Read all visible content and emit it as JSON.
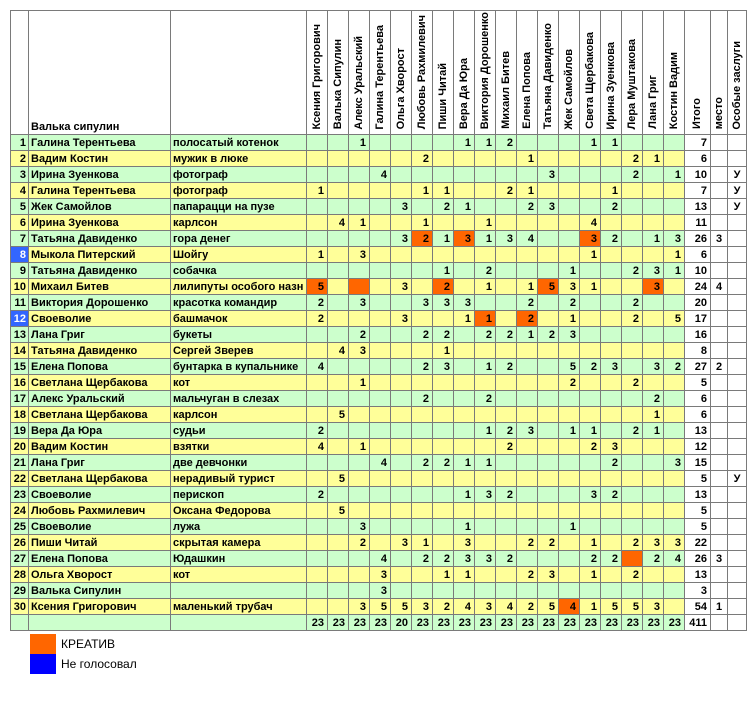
{
  "sheet": {
    "corner_label": "Валька сипулин",
    "columns": {
      "voters": [
        "Ксения Григорович",
        "Валька Сипулин",
        "Алекс Уральский",
        "Галина Терентьева",
        "Ольга Хворост",
        "Любовь Рахмилевич",
        "Пиши Читай",
        "Вера Да Юра",
        "Виктория Дорошенко",
        "Михаил Битев",
        "Елена Попова",
        "Татьяна Давиденко",
        "Жек Самойлов",
        "Света Щербакова",
        "Ирина Зуенкова",
        "Лера Муштакова",
        "Лана Григ",
        "Костин Вадим"
      ],
      "total": "Итого",
      "place": "место",
      "merit": "Особые заслуги"
    },
    "rows": [
      {
        "num": 1,
        "name": "Галина Терентьева",
        "entry": "полосатый котенок",
        "votes": [
          null,
          null,
          1,
          null,
          null,
          null,
          null,
          1,
          1,
          2,
          null,
          null,
          null,
          1,
          1,
          null,
          null,
          null
        ],
        "creative": [],
        "no_vote": false,
        "total": 7,
        "place": "",
        "merit": ""
      },
      {
        "num": 2,
        "name": "Вадим Костин",
        "entry": "мужик в люке",
        "votes": [
          null,
          null,
          null,
          null,
          null,
          2,
          null,
          null,
          null,
          null,
          1,
          null,
          null,
          null,
          null,
          2,
          1,
          null
        ],
        "creative": [],
        "no_vote": false,
        "total": 6,
        "place": "",
        "merit": ""
      },
      {
        "num": 3,
        "name": "Ирина Зуенкова",
        "entry": "фотограф",
        "votes": [
          null,
          null,
          null,
          4,
          null,
          null,
          null,
          null,
          null,
          null,
          null,
          3,
          null,
          null,
          null,
          2,
          null,
          1
        ],
        "creative": [],
        "no_vote": false,
        "total": 10,
        "place": "",
        "merit": "У"
      },
      {
        "num": 4,
        "name": "Галина Терентьева",
        "entry": "фотограф",
        "votes": [
          1,
          null,
          null,
          null,
          null,
          1,
          1,
          null,
          null,
          2,
          1,
          null,
          null,
          null,
          1,
          null,
          null,
          null
        ],
        "creative": [],
        "no_vote": false,
        "total": 7,
        "place": "",
        "merit": "У"
      },
      {
        "num": 5,
        "name": "Жек Самойлов",
        "entry": "папарацци на пузе",
        "votes": [
          null,
          null,
          null,
          null,
          3,
          null,
          2,
          1,
          null,
          null,
          2,
          3,
          null,
          null,
          2,
          null,
          null,
          null
        ],
        "creative": [],
        "no_vote": false,
        "total": 13,
        "place": "",
        "merit": "У"
      },
      {
        "num": 6,
        "name": "Ирина Зуенкова",
        "entry": "карлсон",
        "votes": [
          null,
          4,
          1,
          null,
          null,
          1,
          null,
          null,
          1,
          null,
          null,
          null,
          null,
          4,
          null,
          null,
          null,
          null
        ],
        "creative": [],
        "no_vote": false,
        "total": 11,
        "place": "",
        "merit": ""
      },
      {
        "num": 7,
        "name": "Татьяна Давиденко",
        "entry": "гора денег",
        "votes": [
          null,
          null,
          null,
          null,
          3,
          2,
          1,
          3,
          1,
          3,
          4,
          null,
          null,
          3,
          2,
          null,
          1,
          3
        ],
        "creative": [
          5,
          7,
          13
        ],
        "no_vote": false,
        "total": 26,
        "place": "3",
        "merit": ""
      },
      {
        "num": 8,
        "name": "Мыкола Питерский",
        "entry": "Шойгу",
        "votes": [
          1,
          null,
          3,
          null,
          null,
          null,
          null,
          null,
          null,
          null,
          null,
          null,
          null,
          1,
          null,
          null,
          null,
          1
        ],
        "creative": [],
        "no_vote": true,
        "total": 6,
        "place": "",
        "merit": ""
      },
      {
        "num": 9,
        "name": "Татьяна Давиденко",
        "entry": "собачка",
        "votes": [
          null,
          null,
          null,
          null,
          null,
          null,
          1,
          null,
          2,
          null,
          null,
          null,
          1,
          null,
          null,
          2,
          3,
          1
        ],
        "creative": [],
        "no_vote": false,
        "total": 10,
        "place": "",
        "merit": ""
      },
      {
        "num": 10,
        "name": "Михаил Битев",
        "entry": "лилипуты особого назн",
        "votes": [
          5,
          null,
          null,
          null,
          3,
          null,
          2,
          null,
          1,
          null,
          1,
          5,
          3,
          1,
          null,
          null,
          3,
          null
        ],
        "creative": [
          0,
          2,
          6,
          11,
          16
        ],
        "no_vote": false,
        "total": 24,
        "place": "4",
        "merit": ""
      },
      {
        "num": 11,
        "name": "Виктория Дорошенко",
        "entry": "красотка командир",
        "votes": [
          2,
          null,
          3,
          null,
          null,
          3,
          3,
          3,
          null,
          null,
          2,
          null,
          2,
          null,
          null,
          2,
          null,
          null
        ],
        "creative": [],
        "no_vote": false,
        "total": 20,
        "place": "",
        "merit": ""
      },
      {
        "num": 12,
        "name": "Своеволие",
        "entry": "башмачок",
        "votes": [
          2,
          null,
          null,
          null,
          3,
          null,
          null,
          1,
          1,
          null,
          2,
          null,
          1,
          null,
          null,
          2,
          null,
          5
        ],
        "creative": [
          8,
          10
        ],
        "no_vote": true,
        "total": 17,
        "place": "",
        "merit": ""
      },
      {
        "num": 13,
        "name": "Лана Григ",
        "entry": "букеты",
        "votes": [
          null,
          null,
          2,
          null,
          null,
          2,
          2,
          null,
          2,
          2,
          1,
          2,
          3,
          null,
          null,
          null,
          null,
          null
        ],
        "creative": [],
        "no_vote": false,
        "total": 16,
        "place": "",
        "merit": ""
      },
      {
        "num": 14,
        "name": "Татьяна Давиденко",
        "entry": "Сергей Зверев",
        "votes": [
          null,
          4,
          3,
          null,
          null,
          null,
          1,
          null,
          null,
          null,
          null,
          null,
          null,
          null,
          null,
          null,
          null,
          null
        ],
        "creative": [],
        "no_vote": false,
        "total": 8,
        "place": "",
        "merit": ""
      },
      {
        "num": 15,
        "name": "Елена Попова",
        "entry": "бунтарка в купальнике",
        "votes": [
          4,
          null,
          null,
          null,
          null,
          2,
          3,
          null,
          1,
          2,
          null,
          null,
          5,
          2,
          3,
          null,
          3,
          2
        ],
        "creative": [],
        "no_vote": false,
        "total": 27,
        "place": "2",
        "merit": ""
      },
      {
        "num": 16,
        "name": "Светлана Щербакова",
        "entry": "кот",
        "votes": [
          null,
          null,
          1,
          null,
          null,
          null,
          null,
          null,
          null,
          null,
          null,
          null,
          2,
          null,
          null,
          2,
          null,
          null
        ],
        "creative": [],
        "no_vote": false,
        "total": 5,
        "place": "",
        "merit": ""
      },
      {
        "num": 17,
        "name": "Алекс Уральский",
        "entry": "мальчуган в слезах",
        "votes": [
          null,
          null,
          null,
          null,
          null,
          2,
          null,
          null,
          2,
          null,
          null,
          null,
          null,
          null,
          null,
          null,
          2,
          null
        ],
        "creative": [],
        "no_vote": false,
        "total": 6,
        "place": "",
        "merit": ""
      },
      {
        "num": 18,
        "name": "Светлана Щербакова",
        "entry": "карлсон",
        "votes": [
          null,
          5,
          null,
          null,
          null,
          null,
          null,
          null,
          null,
          null,
          null,
          null,
          null,
          null,
          null,
          null,
          1,
          null
        ],
        "creative": [],
        "no_vote": false,
        "total": 6,
        "place": "",
        "merit": ""
      },
      {
        "num": 19,
        "name": "Вера Да Юра",
        "entry": "судьи",
        "votes": [
          2,
          null,
          null,
          null,
          null,
          null,
          null,
          null,
          1,
          2,
          3,
          null,
          1,
          1,
          null,
          2,
          1,
          null
        ],
        "creative": [],
        "no_vote": false,
        "total": 13,
        "place": "",
        "merit": ""
      },
      {
        "num": 20,
        "name": "Вадим Костин",
        "entry": "взятки",
        "votes": [
          4,
          null,
          1,
          null,
          null,
          null,
          null,
          null,
          null,
          2,
          null,
          null,
          null,
          2,
          3,
          null,
          null,
          null
        ],
        "creative": [],
        "no_vote": false,
        "total": 12,
        "place": "",
        "merit": ""
      },
      {
        "num": 21,
        "name": "Лана Григ",
        "entry": "две девчонки",
        "votes": [
          null,
          null,
          null,
          4,
          null,
          2,
          2,
          1,
          1,
          null,
          null,
          null,
          null,
          null,
          2,
          null,
          null,
          3
        ],
        "creative": [],
        "no_vote": false,
        "total": 15,
        "place": "",
        "merit": ""
      },
      {
        "num": 22,
        "name": "Светлана Щербакова",
        "entry": "нерадивый турист",
        "votes": [
          null,
          5,
          null,
          null,
          null,
          null,
          null,
          null,
          null,
          null,
          null,
          null,
          null,
          null,
          null,
          null,
          null,
          null
        ],
        "creative": [],
        "no_vote": false,
        "total": 5,
        "place": "",
        "merit": "У"
      },
      {
        "num": 23,
        "name": "Своеволие",
        "entry": "перископ",
        "votes": [
          2,
          null,
          null,
          null,
          null,
          null,
          null,
          1,
          3,
          2,
          null,
          null,
          null,
          3,
          2,
          null,
          null,
          null
        ],
        "creative": [],
        "no_vote": false,
        "total": 13,
        "place": "",
        "merit": ""
      },
      {
        "num": 24,
        "name": "Любовь Рахмилевич",
        "entry": "Оксана Федорова",
        "votes": [
          null,
          5,
          null,
          null,
          null,
          null,
          null,
          null,
          null,
          null,
          null,
          null,
          null,
          null,
          null,
          null,
          null,
          null
        ],
        "creative": [],
        "no_vote": false,
        "total": 5,
        "place": "",
        "merit": ""
      },
      {
        "num": 25,
        "name": "Своеволие",
        "entry": "лужа",
        "votes": [
          null,
          null,
          3,
          null,
          null,
          null,
          null,
          1,
          null,
          null,
          null,
          null,
          1,
          null,
          null,
          null,
          null,
          null
        ],
        "creative": [],
        "no_vote": false,
        "total": 5,
        "place": "",
        "merit": ""
      },
      {
        "num": 26,
        "name": "Пиши Читай",
        "entry": "скрытая камера",
        "votes": [
          null,
          null,
          2,
          null,
          3,
          1,
          null,
          3,
          null,
          null,
          2,
          2,
          null,
          1,
          null,
          2,
          3,
          3
        ],
        "creative": [],
        "no_vote": false,
        "total": 22,
        "place": "",
        "merit": ""
      },
      {
        "num": 27,
        "name": "Елена Попова",
        "entry": "Юдашкин",
        "votes": [
          null,
          null,
          null,
          4,
          null,
          2,
          2,
          3,
          3,
          2,
          null,
          null,
          null,
          2,
          2,
          null,
          2,
          4
        ],
        "creative": [
          15
        ],
        "no_vote": false,
        "total": 26,
        "place": "3",
        "merit": ""
      },
      {
        "num": 28,
        "name": "Ольга Хворост",
        "entry": "кот",
        "votes": [
          null,
          null,
          null,
          3,
          null,
          null,
          1,
          1,
          null,
          null,
          2,
          3,
          null,
          1,
          null,
          2,
          null,
          null
        ],
        "creative": [],
        "no_vote": false,
        "total": 13,
        "place": "",
        "merit": ""
      },
      {
        "num": 29,
        "name": "Валька Сипулин",
        "entry": "",
        "votes": [
          null,
          null,
          null,
          3,
          null,
          null,
          null,
          null,
          null,
          null,
          null,
          null,
          null,
          null,
          null,
          null,
          null,
          null
        ],
        "creative": [],
        "no_vote": false,
        "total": 3,
        "place": "",
        "merit": ""
      },
      {
        "num": 30,
        "name": "Ксения Григорович",
        "entry": "маленький трубач",
        "votes": [
          null,
          null,
          3,
          5,
          5,
          3,
          2,
          4,
          3,
          4,
          2,
          5,
          4,
          1,
          5,
          5,
          3,
          null
        ],
        "creative": [
          12
        ],
        "no_vote": false,
        "total": 54,
        "place": "1",
        "merit": ""
      }
    ],
    "totals_row": {
      "votes": [
        23,
        23,
        23,
        23,
        20,
        23,
        23,
        23,
        23,
        23,
        23,
        23,
        23,
        23,
        23,
        23,
        23,
        23
      ],
      "grand": 411,
      "place": "",
      "merit": ""
    }
  },
  "legend": [
    {
      "label": "КРЕАТИВ",
      "color": "#FF6600"
    },
    {
      "label": "Не голосовал",
      "color": "#0000FF"
    }
  ],
  "colors": {
    "row_green": "#CCFFCC",
    "row_yellow": "#FFFF99",
    "creative": "#FF6600",
    "no_vote_cell": "#3366FF"
  }
}
